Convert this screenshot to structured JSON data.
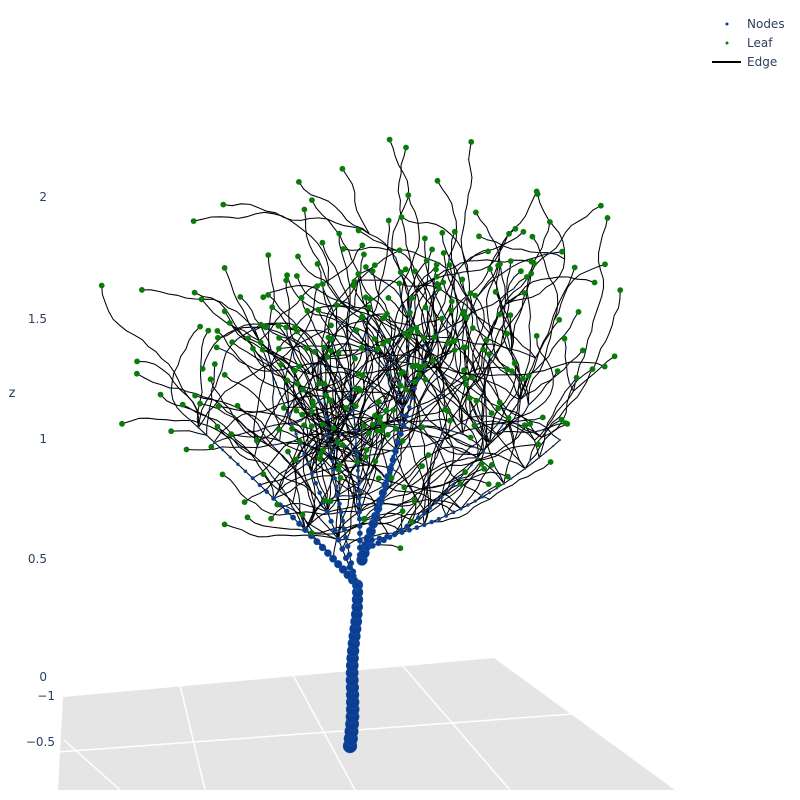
{
  "chart_data": {
    "type": "scatter",
    "subtype": "3d-tree-network",
    "axes": {
      "z": {
        "label": "z",
        "range": [
          0,
          2.45
        ],
        "ticks": [
          "0",
          "0.5",
          "1",
          "1.5",
          "2"
        ]
      },
      "y_floor": {
        "ticks": [
          "−1",
          "−0.5"
        ]
      }
    },
    "legend": {
      "position": "top-right",
      "items": [
        {
          "name": "Nodes",
          "color": "#0b3d91"
        },
        {
          "name": "Leaf",
          "color": "#0a7a0a"
        },
        {
          "name": "Edge",
          "color": "#000000"
        }
      ]
    },
    "colors": {
      "node": "#0b3d91",
      "node_edge": "#1f5fb0",
      "leaf": "#0a7a0a",
      "edge": "#000000",
      "floor": "#e5e5e5",
      "grid": "#ffffff"
    },
    "trunk": {
      "x": 0.0,
      "z_range": [
        -0.3,
        0.5
      ]
    },
    "random_seed": 7,
    "leaf_count": 330
  }
}
